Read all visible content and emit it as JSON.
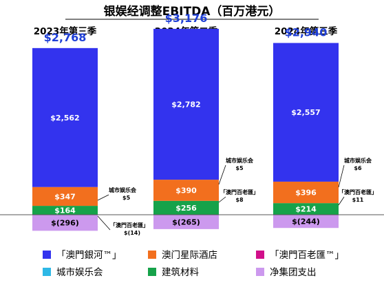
{
  "chart_data": {
    "type": "bar",
    "stacked": true,
    "title": "银娱经调整EBITDA（百万港元）",
    "categories": [
      "2023年第三季",
      "2024年第二季",
      "2024年第三季"
    ],
    "totals": [
      "$2,768",
      "$3,176",
      "$2,940"
    ],
    "series": [
      {
        "name": "「澳門銀河™」",
        "color": "#3333ee",
        "values": [
          2562,
          2782,
          2557
        ],
        "labels": [
          "$2,562",
          "$2,782",
          "$2,557"
        ]
      },
      {
        "name": "澳门星际酒店",
        "color": "#f26f1e",
        "values": [
          347,
          390,
          396
        ],
        "labels": [
          "$347",
          "$390",
          "$396"
        ]
      },
      {
        "name": "「澳門百老匯™」",
        "color": "#d10f8a",
        "values": [
          -14,
          8,
          11
        ],
        "labels": [
          "",
          "",
          ""
        ]
      },
      {
        "name": "城市娱乐会",
        "color": "#2eb8e6",
        "values": [
          5,
          5,
          6
        ],
        "labels": [
          "",
          "",
          ""
        ]
      },
      {
        "name": "建筑材料",
        "color": "#16a24a",
        "values": [
          164,
          256,
          214
        ],
        "labels": [
          "$164",
          "$256",
          "$214"
        ]
      },
      {
        "name": "净集团支出",
        "color": "#cc99ee",
        "values": [
          -296,
          -265,
          -244
        ],
        "labels": [
          "$(296)",
          "$(265)",
          "$(244)"
        ]
      }
    ],
    "annotations": [
      [
        {
          "label": "城市娱乐会",
          "value": "$5"
        },
        {
          "label": "「澳門百老匯」",
          "value": "$(14)"
        }
      ],
      [
        {
          "label": "城市娱乐会",
          "value": "$5"
        },
        {
          "label": "「澳門百老匯」",
          "value": "$8"
        }
      ],
      [
        {
          "label": "城市娱乐会",
          "value": "$6"
        },
        {
          "label": "「澳門百老匯」",
          "value": "$11"
        }
      ]
    ],
    "legend_placement": "bottom",
    "grid": false
  }
}
